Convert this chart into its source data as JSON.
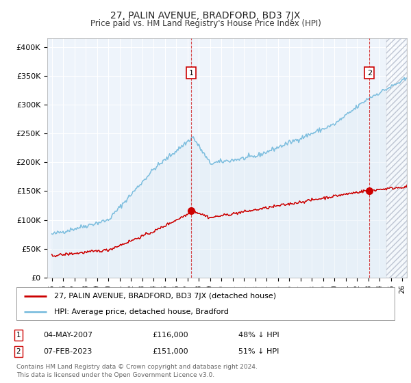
{
  "title": "27, PALIN AVENUE, BRADFORD, BD3 7JX",
  "subtitle": "Price paid vs. HM Land Registry's House Price Index (HPI)",
  "ylabel_ticks": [
    "£0",
    "£50K",
    "£100K",
    "£150K",
    "£200K",
    "£250K",
    "£300K",
    "£350K",
    "£400K"
  ],
  "ytick_values": [
    0,
    50000,
    100000,
    150000,
    200000,
    250000,
    300000,
    350000,
    400000
  ],
  "ylim": [
    0,
    415000
  ],
  "xlim_start": 1994.6,
  "xlim_end": 2026.4,
  "hpi_color": "#7fbfdf",
  "hpi_fill_color": "#daeaf5",
  "property_color": "#cc0000",
  "marker1_x": 2007.33,
  "marker1_y": 116000,
  "marker2_x": 2023.08,
  "marker2_y": 151000,
  "annotation1": {
    "num": "1",
    "date": "04-MAY-2007",
    "price": "£116,000",
    "pct": "48% ↓ HPI"
  },
  "annotation2": {
    "num": "2",
    "date": "07-FEB-2023",
    "price": "£151,000",
    "pct": "51% ↓ HPI"
  },
  "legend_line1": "27, PALIN AVENUE, BRADFORD, BD3 7JX (detached house)",
  "legend_line2": "HPI: Average price, detached house, Bradford",
  "footnote": "Contains HM Land Registry data © Crown copyright and database right 2024.\nThis data is licensed under the Open Government Licence v3.0.",
  "background_color": "#eef4fb",
  "hatch_start": 2024.5,
  "grid_color": "#ffffff"
}
